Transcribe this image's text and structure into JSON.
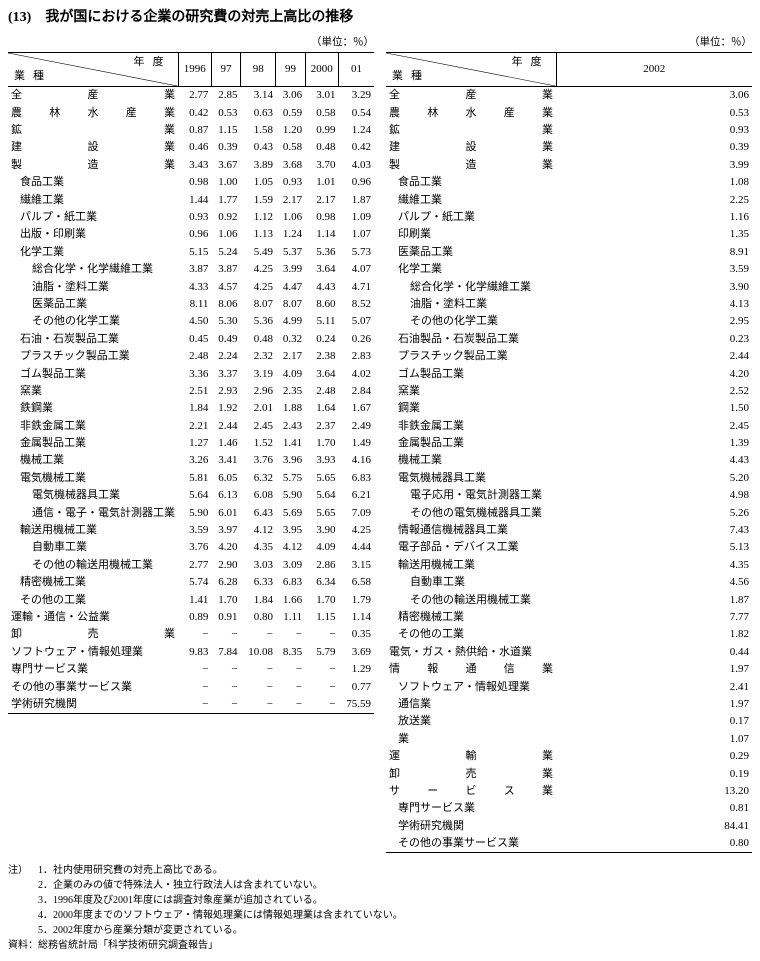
{
  "title": "(13)　我が国における企業の研究費の対売上高比の推移",
  "unit": "（単位：％）",
  "left": {
    "diag": {
      "y": "年度",
      "g": "業種"
    },
    "cols": [
      "1996",
      "97",
      "98",
      "99",
      "2000",
      "01"
    ],
    "rows": [
      {
        "l": "全産業",
        "i": 0,
        "j": 1,
        "v": [
          "2.77",
          "2.85",
          "3.14",
          "3.06",
          "3.01",
          "3.29"
        ]
      },
      {
        "l": "農林水産業",
        "i": 0,
        "j": 1,
        "v": [
          "0.42",
          "0.53",
          "0.63",
          "0.59",
          "0.58",
          "0.54"
        ]
      },
      {
        "l": "鉱業",
        "i": 0,
        "j": 1,
        "v": [
          "0.87",
          "1.15",
          "1.58",
          "1.20",
          "0.99",
          "1.24"
        ]
      },
      {
        "l": "建設業",
        "i": 0,
        "j": 1,
        "v": [
          "0.46",
          "0.39",
          "0.43",
          "0.58",
          "0.48",
          "0.42"
        ]
      },
      {
        "l": "製造業",
        "i": 0,
        "j": 1,
        "v": [
          "3.43",
          "3.67",
          "3.89",
          "3.68",
          "3.70",
          "4.03"
        ]
      },
      {
        "l": "食品工業",
        "i": 1,
        "j": 1,
        "v": [
          "0.98",
          "1.00",
          "1.05",
          "0.93",
          "1.01",
          "0.96"
        ]
      },
      {
        "l": "繊維工業",
        "i": 1,
        "j": 1,
        "v": [
          "1.44",
          "1.77",
          "1.59",
          "2.17",
          "2.17",
          "1.87"
        ]
      },
      {
        "l": "パルプ・紙工業",
        "i": 1,
        "j": 0,
        "v": [
          "0.93",
          "0.92",
          "1.12",
          "1.06",
          "0.98",
          "1.09"
        ]
      },
      {
        "l": "出版・印刷業",
        "i": 1,
        "j": 1,
        "v": [
          "0.96",
          "1.06",
          "1.13",
          "1.24",
          "1.14",
          "1.07"
        ]
      },
      {
        "l": "化学工業",
        "i": 1,
        "j": 1,
        "v": [
          "5.15",
          "5.24",
          "5.49",
          "5.37",
          "5.36",
          "5.73"
        ]
      },
      {
        "l": "総合化学・化学繊維工業",
        "i": 2,
        "j": 0,
        "v": [
          "3.87",
          "3.87",
          "4.25",
          "3.99",
          "3.64",
          "4.07"
        ]
      },
      {
        "l": "油脂・塗料工業",
        "i": 2,
        "j": 0,
        "v": [
          "4.33",
          "4.57",
          "4.25",
          "4.47",
          "4.43",
          "4.71"
        ]
      },
      {
        "l": "医薬品工業",
        "i": 2,
        "j": 0,
        "v": [
          "8.11",
          "8.06",
          "8.07",
          "8.07",
          "8.60",
          "8.52"
        ]
      },
      {
        "l": "その他の化学工業",
        "i": 2,
        "j": 0,
        "v": [
          "4.50",
          "5.30",
          "5.36",
          "4.99",
          "5.11",
          "5.07"
        ]
      },
      {
        "l": "石油・石炭製品工業",
        "i": 1,
        "j": 0,
        "v": [
          "0.45",
          "0.49",
          "0.48",
          "0.32",
          "0.24",
          "0.26"
        ]
      },
      {
        "l": "プラスチック製品工業",
        "i": 1,
        "j": 0,
        "v": [
          "2.48",
          "2.24",
          "2.32",
          "2.17",
          "2.38",
          "2.83"
        ]
      },
      {
        "l": "ゴム製品工業",
        "i": 1,
        "j": 1,
        "v": [
          "3.36",
          "3.37",
          "3.19",
          "4.09",
          "3.64",
          "4.02"
        ]
      },
      {
        "l": "窯業",
        "i": 1,
        "j": 1,
        "v": [
          "2.51",
          "2.93",
          "2.96",
          "2.35",
          "2.48",
          "2.84"
        ]
      },
      {
        "l": "鉄鋼業",
        "i": 1,
        "j": 1,
        "v": [
          "1.84",
          "1.92",
          "2.01",
          "1.88",
          "1.64",
          "1.67"
        ]
      },
      {
        "l": "非鉄金属工業",
        "i": 1,
        "j": 1,
        "v": [
          "2.21",
          "2.44",
          "2.45",
          "2.43",
          "2.37",
          "2.49"
        ]
      },
      {
        "l": "金属製品工業",
        "i": 1,
        "j": 1,
        "v": [
          "1.27",
          "1.46",
          "1.52",
          "1.41",
          "1.70",
          "1.49"
        ]
      },
      {
        "l": "機械工業",
        "i": 1,
        "j": 1,
        "v": [
          "3.26",
          "3.41",
          "3.76",
          "3.96",
          "3.93",
          "4.16"
        ]
      },
      {
        "l": "電気機械工業",
        "i": 1,
        "j": 1,
        "v": [
          "5.81",
          "6.05",
          "6.32",
          "5.75",
          "5.65",
          "6.83"
        ]
      },
      {
        "l": "電気機械器具工業",
        "i": 2,
        "j": 0,
        "v": [
          "5.64",
          "6.13",
          "6.08",
          "5.90",
          "5.64",
          "6.21"
        ]
      },
      {
        "l": "通信・電子・電気計測器工業",
        "i": 2,
        "j": 0,
        "v": [
          "5.90",
          "6.01",
          "6.43",
          "5.69",
          "5.65",
          "7.09"
        ]
      },
      {
        "l": "輸送用機械工業",
        "i": 1,
        "j": 1,
        "v": [
          "3.59",
          "3.97",
          "4.12",
          "3.95",
          "3.90",
          "4.25"
        ]
      },
      {
        "l": "自動車工業",
        "i": 2,
        "j": 0,
        "v": [
          "3.76",
          "4.20",
          "4.35",
          "4.12",
          "4.09",
          "4.44"
        ]
      },
      {
        "l": "その他の輸送用機械工業",
        "i": 2,
        "j": 0,
        "v": [
          "2.77",
          "2.90",
          "3.03",
          "3.09",
          "2.86",
          "3.15"
        ]
      },
      {
        "l": "精密機械工業",
        "i": 1,
        "j": 1,
        "v": [
          "5.74",
          "6.28",
          "6.33",
          "6.83",
          "6.34",
          "6.58"
        ]
      },
      {
        "l": "その他の工業",
        "i": 1,
        "j": 1,
        "v": [
          "1.41",
          "1.70",
          "1.84",
          "1.66",
          "1.70",
          "1.79"
        ]
      },
      {
        "l": "運輸・通信・公益業",
        "i": 0,
        "j": 0,
        "v": [
          "0.89",
          "0.91",
          "0.80",
          "1.11",
          "1.15",
          "1.14"
        ]
      },
      {
        "l": "卸売業",
        "i": 0,
        "j": 1,
        "v": [
          "−",
          "−",
          "−",
          "−",
          "−",
          "0.35"
        ]
      },
      {
        "l": "ソフトウェア・情報処理業",
        "i": 0,
        "j": 0,
        "v": [
          "9.83",
          "7.84",
          "10.08",
          "8.35",
          "5.79",
          "3.69"
        ]
      },
      {
        "l": "専門サービス業",
        "i": 0,
        "j": 0,
        "v": [
          "−",
          "−",
          "−",
          "−",
          "−",
          "1.29"
        ]
      },
      {
        "l": "その他の事業サービス業",
        "i": 0,
        "j": 0,
        "v": [
          "−",
          "−",
          "−",
          "−",
          "−",
          "0.77"
        ]
      },
      {
        "l": "学術研究機関",
        "i": 0,
        "j": 0,
        "v": [
          "−",
          "−",
          "−",
          "−",
          "−",
          "75.59"
        ],
        "last": 1
      }
    ]
  },
  "right": {
    "diag": {
      "y": "年度",
      "g": "業種"
    },
    "cols": [
      "2002"
    ],
    "rows": [
      {
        "l": "全産業",
        "i": 0,
        "j": 1,
        "v": [
          "3.06"
        ]
      },
      {
        "l": "農林水産業",
        "i": 0,
        "j": 1,
        "v": [
          "0.53"
        ]
      },
      {
        "l": "鉱業",
        "i": 0,
        "j": 1,
        "v": [
          "0.93"
        ]
      },
      {
        "l": "建設業",
        "i": 0,
        "j": 1,
        "v": [
          "0.39"
        ]
      },
      {
        "l": "製造業",
        "i": 0,
        "j": 1,
        "v": [
          "3.99"
        ]
      },
      {
        "l": "食品工業",
        "i": 1,
        "j": 1,
        "v": [
          "1.08"
        ]
      },
      {
        "l": "繊維工業",
        "i": 1,
        "j": 1,
        "v": [
          "2.25"
        ]
      },
      {
        "l": "パルプ・紙工業",
        "i": 1,
        "j": 1,
        "v": [
          "1.16"
        ]
      },
      {
        "l": "印刷業",
        "i": 1,
        "j": 1,
        "v": [
          "1.35"
        ]
      },
      {
        "l": "医薬品工業",
        "i": 1,
        "j": 1,
        "v": [
          "8.91"
        ]
      },
      {
        "l": "化学工業",
        "i": 1,
        "j": 1,
        "v": [
          "3.59"
        ]
      },
      {
        "l": "総合化学・化学繊維工業",
        "i": 2,
        "j": 0,
        "v": [
          "3.90"
        ]
      },
      {
        "l": "油脂・塗料工業",
        "i": 2,
        "j": 1,
        "v": [
          "4.13"
        ]
      },
      {
        "l": "その他の化学工業",
        "i": 2,
        "j": 1,
        "v": [
          "2.95"
        ]
      },
      {
        "l": "石油製品・石炭製品工業",
        "i": 1,
        "j": 0,
        "v": [
          "0.23"
        ]
      },
      {
        "l": "プラスチック製品工業",
        "i": 1,
        "j": 0,
        "v": [
          "2.44"
        ]
      },
      {
        "l": "ゴム製品工業",
        "i": 1,
        "j": 1,
        "v": [
          "4.20"
        ]
      },
      {
        "l": "窯業",
        "i": 1,
        "j": 1,
        "v": [
          "2.52"
        ]
      },
      {
        "l": "鋼業",
        "i": 1,
        "j": 1,
        "v": [
          "1.50"
        ]
      },
      {
        "l": "非鉄金属工業",
        "i": 1,
        "j": 1,
        "v": [
          "2.45"
        ]
      },
      {
        "l": "金属製品工業",
        "i": 1,
        "j": 1,
        "v": [
          "1.39"
        ]
      },
      {
        "l": "機械工業",
        "i": 1,
        "j": 1,
        "v": [
          "4.43"
        ]
      },
      {
        "l": "電気機械器具工業",
        "i": 1,
        "j": 1,
        "v": [
          "5.20"
        ]
      },
      {
        "l": "電子応用・電気計測器工業",
        "i": 2,
        "j": 0,
        "v": [
          "4.98"
        ]
      },
      {
        "l": "その他の電気機械器具工業",
        "i": 2,
        "j": 0,
        "v": [
          "5.26"
        ]
      },
      {
        "l": "情報通信機械器具工業",
        "i": 1,
        "j": 0,
        "v": [
          "7.43"
        ]
      },
      {
        "l": "電子部品・デバイス工業",
        "i": 1,
        "j": 0,
        "v": [
          "5.13"
        ]
      },
      {
        "l": "輸送用機械工業",
        "i": 1,
        "j": 1,
        "v": [
          "4.35"
        ]
      },
      {
        "l": "自動車工業",
        "i": 2,
        "j": 1,
        "v": [
          "4.56"
        ]
      },
      {
        "l": "その他の輸送用機械工業",
        "i": 2,
        "j": 0,
        "v": [
          "1.87"
        ]
      },
      {
        "l": "精密機械工業",
        "i": 1,
        "j": 1,
        "v": [
          "7.77"
        ]
      },
      {
        "l": "その他の工業",
        "i": 1,
        "j": 1,
        "v": [
          "1.82"
        ]
      },
      {
        "l": "電気・ガス・熱供給・水道業",
        "i": 0,
        "j": 0,
        "v": [
          "0.44"
        ]
      },
      {
        "l": "情報通信業",
        "i": 0,
        "j": 1,
        "v": [
          "1.97"
        ]
      },
      {
        "l": "ソフトウェア・情報処理業",
        "i": 1,
        "j": 0,
        "v": [
          "2.41"
        ]
      },
      {
        "l": "通信業",
        "i": 1,
        "j": 1,
        "v": [
          "1.97"
        ]
      },
      {
        "l": "放送業",
        "i": 1,
        "j": 1,
        "v": [
          "0.17"
        ]
      },
      {
        "l": "業",
        "i": 1,
        "j": 1,
        "v": [
          "1.07"
        ]
      },
      {
        "l": "運輸業",
        "i": 0,
        "j": 1,
        "v": [
          "0.29"
        ]
      },
      {
        "l": "卸売業",
        "i": 0,
        "j": 1,
        "v": [
          "0.19"
        ]
      },
      {
        "l": "サービス業",
        "i": 0,
        "j": 1,
        "v": [
          "13.20"
        ]
      },
      {
        "l": "専門サービス業",
        "i": 1,
        "j": 1,
        "v": [
          "0.81"
        ]
      },
      {
        "l": "学術研究機関",
        "i": 1,
        "j": 1,
        "v": [
          "84.41"
        ]
      },
      {
        "l": "その他の事業サービス業",
        "i": 1,
        "j": 0,
        "v": [
          "0.80"
        ],
        "last": 1
      }
    ]
  },
  "notes": [
    {
      "h": "注）",
      "t": "1．社内使用研究費の対売上高比である。"
    },
    {
      "h": "",
      "t": "2．企業のみの値で特殊法人・独立行政法人は含まれていない。"
    },
    {
      "h": "",
      "t": "3．1996年度及び2001年度には調査対象産業が追加されている。"
    },
    {
      "h": "",
      "t": "4．2000年度までのソフトウェア・情報処理業には情報処理業は含まれていない。"
    },
    {
      "h": "",
      "t": "5．2002年度から産業分類が変更されている。"
    },
    {
      "h": "資料：",
      "t": "総務省統計局「科学技術研究調査報告」"
    }
  ]
}
